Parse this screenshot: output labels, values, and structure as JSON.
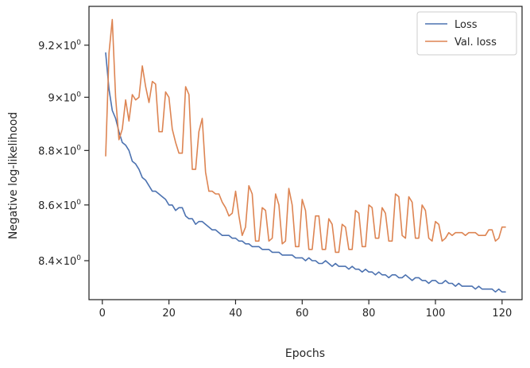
{
  "chart_data": {
    "type": "line",
    "xlabel": "Epochs",
    "ylabel": "Negative log-likelihood",
    "xlim": [
      -4,
      126
    ],
    "ylim": [
      8.263,
      9.352
    ],
    "yscale": "log",
    "grid": false,
    "legend_position": "top-right",
    "x_ticks": [
      0,
      20,
      40,
      60,
      80,
      100,
      120
    ],
    "x_tick_labels": [
      "0",
      "20",
      "40",
      "60",
      "80",
      "100",
      "120"
    ],
    "y_ticks": [
      8.4,
      8.6,
      8.8,
      9.0,
      9.2
    ],
    "y_tick_labels": [
      {
        "mantissa": "8.4",
        "base": "10",
        "exp": "0"
      },
      {
        "mantissa": "8.6",
        "base": "10",
        "exp": "0"
      },
      {
        "mantissa": "8.8",
        "base": "10",
        "exp": "0"
      },
      {
        "mantissa": "9",
        "base": "10",
        "exp": "0"
      },
      {
        "mantissa": "9.2",
        "base": "10",
        "exp": "0"
      }
    ],
    "x": [
      1,
      2,
      3,
      4,
      5,
      6,
      7,
      8,
      9,
      10,
      11,
      12,
      13,
      14,
      15,
      16,
      17,
      18,
      19,
      20,
      21,
      22,
      23,
      24,
      25,
      26,
      27,
      28,
      29,
      30,
      31,
      32,
      33,
      34,
      35,
      36,
      37,
      38,
      39,
      40,
      41,
      42,
      43,
      44,
      45,
      46,
      47,
      48,
      49,
      50,
      51,
      52,
      53,
      54,
      55,
      56,
      57,
      58,
      59,
      60,
      61,
      62,
      63,
      64,
      65,
      66,
      67,
      68,
      69,
      70,
      71,
      72,
      73,
      74,
      75,
      76,
      77,
      78,
      79,
      80,
      81,
      82,
      83,
      84,
      85,
      86,
      87,
      88,
      89,
      90,
      91,
      92,
      93,
      94,
      95,
      96,
      97,
      98,
      99,
      100,
      101,
      102,
      103,
      104,
      105,
      106,
      107,
      108,
      109,
      110,
      111,
      112,
      113,
      114,
      115,
      116,
      117,
      118,
      119,
      120,
      121
    ],
    "series": [
      {
        "name": "Loss",
        "color": "#4c72b0",
        "values": [
          9.17,
          9.03,
          8.95,
          8.92,
          8.87,
          8.83,
          8.82,
          8.8,
          8.76,
          8.75,
          8.73,
          8.7,
          8.69,
          8.67,
          8.65,
          8.65,
          8.64,
          8.63,
          8.62,
          8.6,
          8.6,
          8.58,
          8.59,
          8.59,
          8.56,
          8.55,
          8.55,
          8.53,
          8.54,
          8.54,
          8.53,
          8.52,
          8.51,
          8.51,
          8.5,
          8.49,
          8.49,
          8.49,
          8.48,
          8.48,
          8.47,
          8.47,
          8.46,
          8.46,
          8.45,
          8.45,
          8.45,
          8.44,
          8.44,
          8.44,
          8.43,
          8.43,
          8.43,
          8.42,
          8.42,
          8.42,
          8.42,
          8.41,
          8.41,
          8.41,
          8.4,
          8.41,
          8.4,
          8.4,
          8.39,
          8.39,
          8.4,
          8.39,
          8.38,
          8.39,
          8.38,
          8.38,
          8.38,
          8.37,
          8.38,
          8.37,
          8.37,
          8.36,
          8.37,
          8.36,
          8.36,
          8.35,
          8.36,
          8.35,
          8.35,
          8.34,
          8.35,
          8.35,
          8.34,
          8.34,
          8.35,
          8.34,
          8.33,
          8.34,
          8.34,
          8.33,
          8.33,
          8.32,
          8.33,
          8.33,
          8.32,
          8.32,
          8.33,
          8.32,
          8.32,
          8.31,
          8.32,
          8.31,
          8.31,
          8.31,
          8.31,
          8.3,
          8.31,
          8.3,
          8.3,
          8.3,
          8.3,
          8.29,
          8.3,
          8.29,
          8.29
        ]
      },
      {
        "name": "Val. loss",
        "color": "#dd8452",
        "values": [
          8.78,
          9.17,
          9.3,
          9.0,
          8.84,
          8.88,
          8.99,
          8.91,
          9.01,
          8.99,
          9.0,
          9.12,
          9.04,
          8.98,
          9.06,
          9.05,
          8.87,
          8.87,
          9.02,
          9.0,
          8.88,
          8.83,
          8.79,
          8.79,
          9.04,
          9.01,
          8.73,
          8.73,
          8.87,
          8.92,
          8.72,
          8.65,
          8.65,
          8.64,
          8.64,
          8.61,
          8.59,
          8.56,
          8.57,
          8.65,
          8.56,
          8.49,
          8.52,
          8.67,
          8.64,
          8.47,
          8.47,
          8.59,
          8.58,
          8.47,
          8.48,
          8.64,
          8.6,
          8.46,
          8.47,
          8.66,
          8.6,
          8.45,
          8.45,
          8.62,
          8.58,
          8.44,
          8.44,
          8.56,
          8.56,
          8.44,
          8.44,
          8.55,
          8.53,
          8.43,
          8.43,
          8.53,
          8.52,
          8.44,
          8.44,
          8.58,
          8.57,
          8.45,
          8.45,
          8.6,
          8.59,
          8.48,
          8.48,
          8.59,
          8.57,
          8.47,
          8.47,
          8.64,
          8.63,
          8.49,
          8.48,
          8.63,
          8.61,
          8.48,
          8.48,
          8.6,
          8.58,
          8.48,
          8.47,
          8.54,
          8.53,
          8.47,
          8.48,
          8.5,
          8.49,
          8.5,
          8.5,
          8.5,
          8.49,
          8.5,
          8.5,
          8.5,
          8.49,
          8.49,
          8.49,
          8.51,
          8.51,
          8.47,
          8.48,
          8.52,
          8.52
        ]
      }
    ]
  }
}
